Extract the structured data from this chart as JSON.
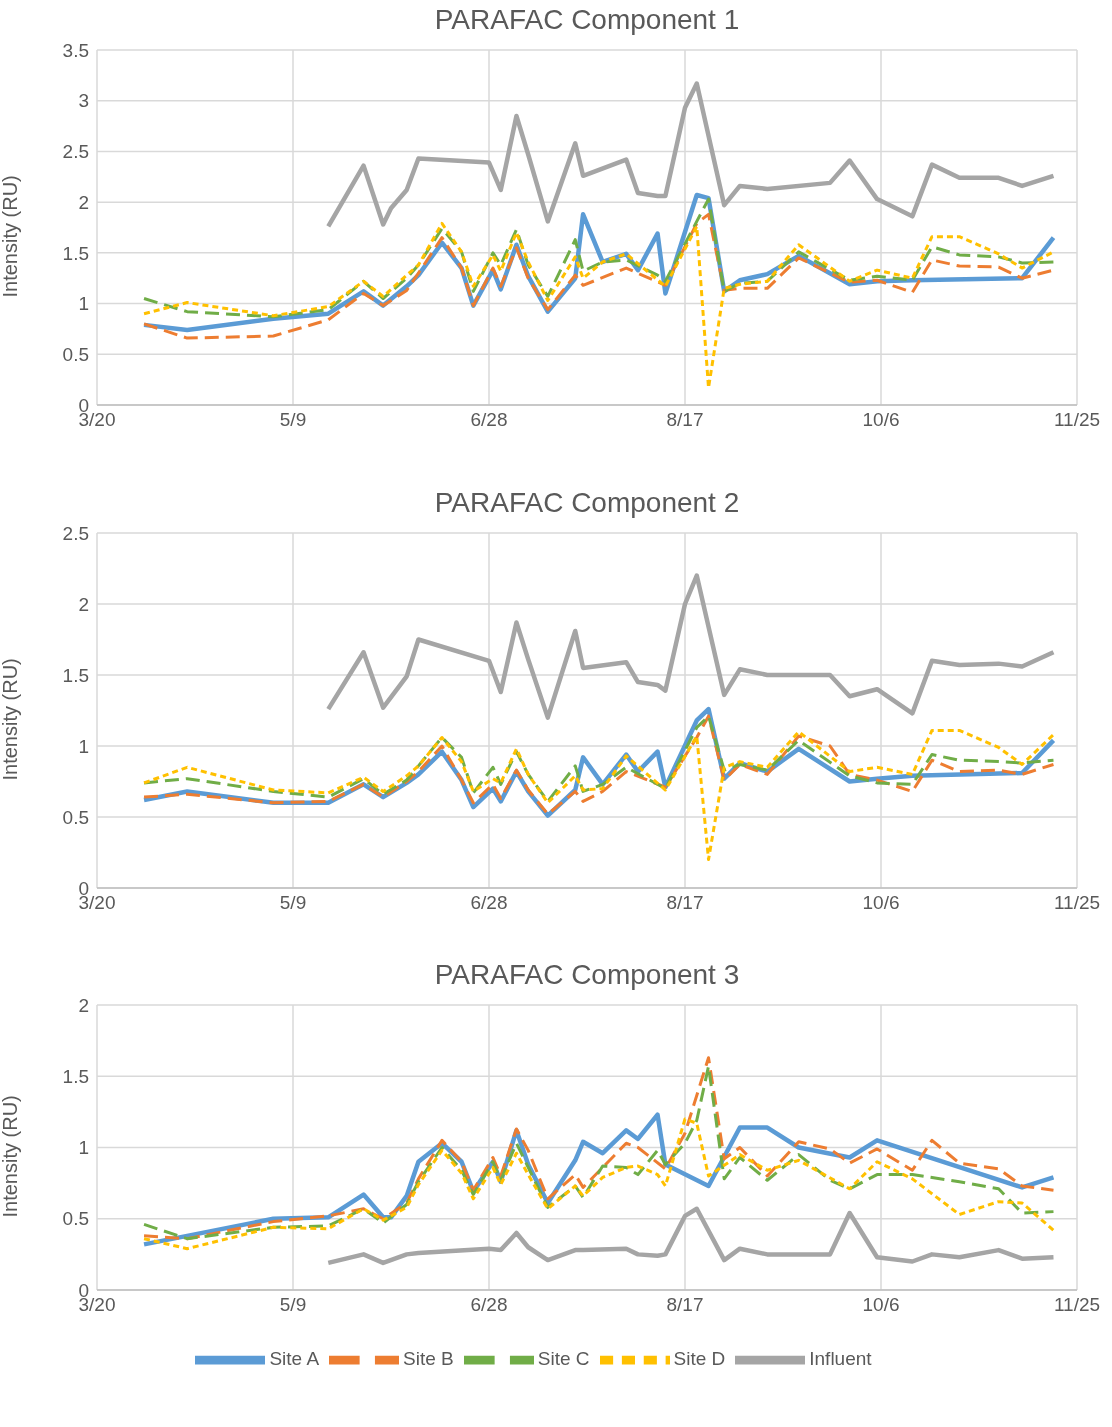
{
  "chart_data": [
    {
      "type": "line",
      "title": "PARAFAC Component 1",
      "ylabel": "Intensity (RU)",
      "xlim": [
        "--03-20",
        "--11-25"
      ],
      "xticks": [
        {
          "value": "--03-20",
          "label": "3/20"
        },
        {
          "value": "--05-09",
          "label": "5/9"
        },
        {
          "value": "--06-28",
          "label": "6/28"
        },
        {
          "value": "--08-17",
          "label": "8/17"
        },
        {
          "value": "--10-06",
          "label": "10/6"
        },
        {
          "value": "--11-25",
          "label": "11/25"
        }
      ],
      "ylim": [
        0,
        3.5
      ],
      "yticks": [
        0,
        0.5,
        1,
        1.5,
        2,
        2.5,
        3,
        3.5
      ],
      "grid": true,
      "legend": false,
      "marker": "none",
      "series": [
        {
          "color": "#5b9bd5",
          "line_style": "solid",
          "x": [
            "--04-01",
            "--04-12",
            "--05-04",
            "--05-18",
            "--05-27",
            "--06-01",
            "--06-07",
            "--06-10",
            "--06-16",
            "--06-21",
            "--06-24",
            "--06-29",
            "--07-01",
            "--07-05",
            "--07-08",
            "--07-13",
            "--07-20",
            "--07-22",
            "--07-27",
            "--08-02",
            "--08-05",
            "--08-10",
            "--08-12",
            "--08-20",
            "--08-23",
            "--08-27",
            "--08-31",
            "--09-07",
            "--09-15",
            "--09-28",
            "--10-05",
            "--10-14",
            "--11-11",
            "--11-19"
          ],
          "values": [
            0.79,
            0.74,
            0.85,
            0.9,
            1.12,
            0.98,
            1.17,
            1.28,
            1.6,
            1.35,
            0.98,
            1.33,
            1.14,
            1.58,
            1.27,
            0.92,
            1.25,
            1.88,
            1.41,
            1.49,
            1.33,
            1.69,
            1.1,
            2.07,
            2.04,
            1.12,
            1.23,
            1.29,
            1.47,
            1.19,
            1.22,
            1.23,
            1.25,
            1.65
          ]
        },
        {
          "color": "#ed7d31",
          "line_style": "dashed",
          "x": [
            "--04-01",
            "--04-12",
            "--05-04",
            "--05-18",
            "--05-27",
            "--06-01",
            "--06-07",
            "--06-10",
            "--06-16",
            "--06-21",
            "--06-24",
            "--06-29",
            "--07-01",
            "--07-05",
            "--07-08",
            "--07-13",
            "--07-20",
            "--07-22",
            "--08-02",
            "--08-12",
            "--08-20",
            "--08-23",
            "--08-27",
            "--08-31",
            "--09-07",
            "--09-15",
            "--09-28",
            "--10-05",
            "--10-14",
            "--10-19",
            "--10-26",
            "--11-05",
            "--11-11",
            "--11-19"
          ],
          "values": [
            0.8,
            0.66,
            0.68,
            0.84,
            1.1,
            0.98,
            1.13,
            1.3,
            1.65,
            1.35,
            0.98,
            1.35,
            1.17,
            1.55,
            1.25,
            0.94,
            1.28,
            1.18,
            1.35,
            1.18,
            1.79,
            1.88,
            1.13,
            1.15,
            1.15,
            1.45,
            1.21,
            1.23,
            1.11,
            1.43,
            1.37,
            1.36,
            1.25,
            1.33
          ]
        },
        {
          "color": "#70ad47",
          "line_style": "dashed",
          "x": [
            "--04-01",
            "--04-12",
            "--05-04",
            "--05-18",
            "--05-27",
            "--06-01",
            "--06-07",
            "--06-10",
            "--06-16",
            "--06-21",
            "--06-24",
            "--06-29",
            "--07-01",
            "--07-05",
            "--07-08",
            "--07-13",
            "--07-20",
            "--07-22",
            "--07-27",
            "--08-02",
            "--08-10",
            "--08-12",
            "--08-20",
            "--08-23",
            "--08-27",
            "--08-31",
            "--09-07",
            "--09-15",
            "--09-28",
            "--10-05",
            "--10-14",
            "--10-19",
            "--10-26",
            "--11-05",
            "--11-11",
            "--11-19"
          ],
          "values": [
            1.05,
            0.92,
            0.87,
            0.94,
            1.22,
            1.05,
            1.25,
            1.38,
            1.74,
            1.51,
            1.12,
            1.5,
            1.38,
            1.73,
            1.38,
            1.07,
            1.63,
            1.32,
            1.41,
            1.43,
            1.28,
            1.22,
            1.81,
            2.03,
            1.12,
            1.2,
            1.22,
            1.51,
            1.23,
            1.27,
            1.23,
            1.56,
            1.48,
            1.46,
            1.4,
            1.41
          ]
        },
        {
          "color": "#ffc000",
          "line_style": "dotted",
          "x": [
            "--04-01",
            "--04-12",
            "--05-04",
            "--05-18",
            "--05-27",
            "--06-01",
            "--06-07",
            "--06-10",
            "--06-16",
            "--06-21",
            "--06-24",
            "--06-29",
            "--07-01",
            "--07-05",
            "--07-08",
            "--07-13",
            "--07-20",
            "--07-22",
            "--07-27",
            "--08-02",
            "--08-12",
            "--08-20",
            "--08-23",
            "--08-27",
            "--08-31",
            "--09-07",
            "--09-15",
            "--09-28",
            "--10-05",
            "--10-14",
            "--10-19",
            "--10-26",
            "--11-05",
            "--11-11",
            "--11-19"
          ],
          "values": [
            0.9,
            1.01,
            0.88,
            0.97,
            1.22,
            1.07,
            1.28,
            1.38,
            1.79,
            1.51,
            1.17,
            1.48,
            1.32,
            1.7,
            1.41,
            1.03,
            1.46,
            1.25,
            1.41,
            1.49,
            1.17,
            1.76,
            0.17,
            1.15,
            1.19,
            1.22,
            1.58,
            1.22,
            1.33,
            1.25,
            1.66,
            1.66,
            1.49,
            1.35,
            1.51
          ]
        },
        {
          "color": "#a5a5a5",
          "line_style": "solid",
          "x": [
            "--05-18",
            "--05-27",
            "--06-01",
            "--06-03",
            "--06-07",
            "--06-10",
            "--06-28",
            "--07-01",
            "--07-05",
            "--07-08",
            "--07-13",
            "--07-20",
            "--07-22",
            "--08-02",
            "--08-05",
            "--08-10",
            "--08-12",
            "--08-17",
            "--08-20",
            "--08-27",
            "--08-31",
            "--09-07",
            "--09-23",
            "--09-28",
            "--10-05",
            "--10-14",
            "--10-19",
            "--10-26",
            "--11-05",
            "--11-11",
            "--11-19"
          ],
          "values": [
            1.76,
            2.36,
            1.78,
            1.94,
            2.12,
            2.43,
            2.39,
            2.12,
            2.85,
            2.47,
            1.81,
            2.58,
            2.26,
            2.42,
            2.09,
            2.06,
            2.06,
            2.93,
            3.17,
            1.97,
            2.16,
            2.13,
            2.19,
            2.41,
            2.03,
            1.86,
            2.37,
            2.24,
            2.24,
            2.16,
            2.26
          ]
        }
      ]
    },
    {
      "type": "line",
      "title": "PARAFAC Component 2",
      "ylabel": "Intensity (RU)",
      "xlim": [
        "--03-20",
        "--11-25"
      ],
      "xticks": [
        {
          "value": "--03-20",
          "label": "3/20"
        },
        {
          "value": "--05-09",
          "label": "5/9"
        },
        {
          "value": "--06-28",
          "label": "6/28"
        },
        {
          "value": "--08-17",
          "label": "8/17"
        },
        {
          "value": "--10-06",
          "label": "10/6"
        },
        {
          "value": "--11-25",
          "label": "11/25"
        }
      ],
      "ylim": [
        0,
        2.5
      ],
      "yticks": [
        0,
        0.5,
        1,
        1.5,
        2,
        2.5
      ],
      "grid": true,
      "legend": false,
      "marker": "none",
      "series": [
        {
          "color": "#5b9bd5",
          "line_style": "solid",
          "x": [
            "--04-01",
            "--04-12",
            "--05-04",
            "--05-18",
            "--05-27",
            "--06-01",
            "--06-07",
            "--06-10",
            "--06-16",
            "--06-21",
            "--06-24",
            "--06-29",
            "--07-01",
            "--07-05",
            "--07-08",
            "--07-13",
            "--07-20",
            "--07-22",
            "--07-27",
            "--08-02",
            "--08-05",
            "--08-10",
            "--08-12",
            "--08-20",
            "--08-23",
            "--08-27",
            "--08-31",
            "--09-07",
            "--09-15",
            "--09-28",
            "--10-05",
            "--10-14",
            "--11-11",
            "--11-19"
          ],
          "values": [
            0.62,
            0.68,
            0.6,
            0.6,
            0.73,
            0.64,
            0.74,
            0.8,
            0.96,
            0.76,
            0.57,
            0.7,
            0.61,
            0.82,
            0.68,
            0.51,
            0.69,
            0.92,
            0.73,
            0.94,
            0.82,
            0.96,
            0.71,
            1.18,
            1.26,
            0.77,
            0.88,
            0.82,
            0.98,
            0.75,
            0.77,
            0.79,
            0.81,
            1.04
          ]
        },
        {
          "color": "#ed7d31",
          "line_style": "dashed",
          "x": [
            "--04-01",
            "--04-12",
            "--05-04",
            "--05-18",
            "--05-27",
            "--06-01",
            "--06-07",
            "--06-10",
            "--06-16",
            "--06-21",
            "--06-24",
            "--06-29",
            "--07-01",
            "--07-05",
            "--07-08",
            "--07-13",
            "--07-20",
            "--07-22",
            "--07-27",
            "--08-02",
            "--08-12",
            "--08-20",
            "--08-23",
            "--08-27",
            "--08-31",
            "--09-07",
            "--09-15",
            "--09-23",
            "--09-28",
            "--10-05",
            "--10-14",
            "--10-19",
            "--10-26",
            "--11-05",
            "--11-11",
            "--11-19"
          ],
          "values": [
            0.64,
            0.66,
            0.6,
            0.61,
            0.73,
            0.64,
            0.75,
            0.82,
            1.0,
            0.76,
            0.6,
            0.73,
            0.63,
            0.83,
            0.69,
            0.52,
            0.68,
            0.61,
            0.68,
            0.82,
            0.71,
            1.06,
            1.21,
            0.76,
            0.87,
            0.8,
            1.07,
            1.0,
            0.8,
            0.76,
            0.68,
            0.9,
            0.82,
            0.83,
            0.8,
            0.87
          ]
        },
        {
          "color": "#70ad47",
          "line_style": "dashed",
          "x": [
            "--04-01",
            "--04-12",
            "--05-04",
            "--05-18",
            "--05-27",
            "--06-01",
            "--06-07",
            "--06-10",
            "--06-16",
            "--06-21",
            "--06-24",
            "--06-29",
            "--07-01",
            "--07-05",
            "--07-08",
            "--07-13",
            "--07-20",
            "--07-22",
            "--07-27",
            "--08-02",
            "--08-12",
            "--08-20",
            "--08-23",
            "--08-27",
            "--08-31",
            "--09-07",
            "--09-15",
            "--09-28",
            "--10-05",
            "--10-14",
            "--10-19",
            "--10-26",
            "--11-05",
            "--11-11",
            "--11-19"
          ],
          "values": [
            0.74,
            0.77,
            0.68,
            0.64,
            0.77,
            0.66,
            0.76,
            0.86,
            1.06,
            0.92,
            0.67,
            0.85,
            0.73,
            0.96,
            0.8,
            0.61,
            0.86,
            0.68,
            0.73,
            0.85,
            0.7,
            1.13,
            1.21,
            0.83,
            0.87,
            0.83,
            1.04,
            0.79,
            0.74,
            0.73,
            0.94,
            0.9,
            0.89,
            0.88,
            0.9
          ]
        },
        {
          "color": "#ffc000",
          "line_style": "dotted",
          "x": [
            "--04-01",
            "--04-12",
            "--05-04",
            "--05-18",
            "--05-27",
            "--06-01",
            "--06-07",
            "--06-10",
            "--06-16",
            "--06-21",
            "--06-24",
            "--06-29",
            "--07-01",
            "--07-05",
            "--07-08",
            "--07-13",
            "--07-20",
            "--07-22",
            "--07-27",
            "--08-02",
            "--08-12",
            "--08-20",
            "--08-23",
            "--08-27",
            "--08-31",
            "--09-07",
            "--09-15",
            "--09-28",
            "--10-05",
            "--10-14",
            "--10-19",
            "--10-26",
            "--11-05",
            "--11-11",
            "--11-19"
          ],
          "values": [
            0.74,
            0.85,
            0.69,
            0.67,
            0.78,
            0.68,
            0.79,
            0.86,
            1.06,
            0.89,
            0.68,
            0.77,
            0.74,
            0.98,
            0.8,
            0.6,
            0.79,
            0.69,
            0.7,
            0.93,
            0.69,
            1.07,
            0.2,
            0.85,
            0.89,
            0.85,
            1.1,
            0.82,
            0.85,
            0.8,
            1.11,
            1.11,
            0.99,
            0.87,
            1.08
          ]
        },
        {
          "color": "#a5a5a5",
          "line_style": "solid",
          "x": [
            "--05-18",
            "--05-27",
            "--06-01",
            "--06-07",
            "--06-10",
            "--06-28",
            "--07-01",
            "--07-05",
            "--07-08",
            "--07-13",
            "--07-20",
            "--07-22",
            "--08-02",
            "--08-05",
            "--08-10",
            "--08-12",
            "--08-17",
            "--08-20",
            "--08-27",
            "--08-31",
            "--09-07",
            "--09-23",
            "--09-28",
            "--10-05",
            "--10-14",
            "--10-19",
            "--10-26",
            "--11-05",
            "--11-11",
            "--11-19"
          ],
          "values": [
            1.26,
            1.66,
            1.27,
            1.49,
            1.75,
            1.6,
            1.38,
            1.87,
            1.61,
            1.2,
            1.81,
            1.55,
            1.59,
            1.45,
            1.43,
            1.39,
            2.0,
            2.2,
            1.36,
            1.54,
            1.5,
            1.5,
            1.35,
            1.4,
            1.23,
            1.6,
            1.57,
            1.58,
            1.56,
            1.66
          ]
        }
      ]
    },
    {
      "type": "line",
      "title": "PARAFAC Component 3",
      "ylabel": "Intensity (RU)",
      "xlim": [
        "--03-20",
        "--11-25"
      ],
      "xticks": [
        {
          "value": "--03-20",
          "label": "3/20"
        },
        {
          "value": "--05-09",
          "label": "5/9"
        },
        {
          "value": "--06-28",
          "label": "6/28"
        },
        {
          "value": "--08-17",
          "label": "8/17"
        },
        {
          "value": "--10-06",
          "label": "10/6"
        },
        {
          "value": "--11-25",
          "label": "11/25"
        }
      ],
      "ylim": [
        0,
        2
      ],
      "yticks": [
        0,
        0.5,
        1,
        1.5,
        2
      ],
      "grid": true,
      "legend": "bottom",
      "marker": "none",
      "series": [
        {
          "name": "Site A",
          "color": "#5b9bd5",
          "line_style": "solid",
          "x": [
            "--04-01",
            "--04-12",
            "--05-04",
            "--05-18",
            "--05-27",
            "--06-01",
            "--06-03",
            "--06-07",
            "--06-10",
            "--06-16",
            "--06-21",
            "--06-24",
            "--06-29",
            "--07-01",
            "--07-05",
            "--07-08",
            "--07-13",
            "--07-20",
            "--07-22",
            "--07-27",
            "--08-02",
            "--08-05",
            "--08-10",
            "--08-12",
            "--08-23",
            "--08-31",
            "--09-07",
            "--09-15",
            "--09-28",
            "--10-05",
            "--11-11",
            "--11-19"
          ],
          "values": [
            0.32,
            0.38,
            0.5,
            0.51,
            0.67,
            0.51,
            0.51,
            0.66,
            0.9,
            1.03,
            0.9,
            0.69,
            0.9,
            0.76,
            1.12,
            0.88,
            0.61,
            0.91,
            1.04,
            0.96,
            1.12,
            1.06,
            1.23,
            0.88,
            0.73,
            1.14,
            1.14,
            1.0,
            0.93,
            1.05,
            0.72,
            0.79
          ]
        },
        {
          "name": "Site B",
          "color": "#ed7d31",
          "line_style": "dashed",
          "x": [
            "--04-01",
            "--04-12",
            "--05-04",
            "--05-18",
            "--05-27",
            "--06-01",
            "--06-07",
            "--06-10",
            "--06-16",
            "--06-21",
            "--06-24",
            "--06-29",
            "--07-01",
            "--07-05",
            "--07-08",
            "--07-13",
            "--07-20",
            "--07-22",
            "--07-27",
            "--08-02",
            "--08-05",
            "--08-12",
            "--08-17",
            "--08-23",
            "--08-27",
            "--08-31",
            "--09-07",
            "--09-15",
            "--09-23",
            "--09-28",
            "--10-05",
            "--10-14",
            "--10-19",
            "--10-26",
            "--11-05",
            "--11-11",
            "--11-19"
          ],
          "values": [
            0.38,
            0.36,
            0.48,
            0.52,
            0.57,
            0.5,
            0.61,
            0.78,
            1.05,
            0.9,
            0.7,
            0.93,
            0.8,
            1.13,
            0.98,
            0.64,
            0.81,
            0.72,
            0.86,
            1.03,
            1.0,
            0.85,
            1.1,
            1.63,
            0.92,
            1.0,
            0.8,
            1.04,
            0.99,
            0.89,
            0.99,
            0.84,
            1.05,
            0.89,
            0.85,
            0.73,
            0.7
          ]
        },
        {
          "name": "Site C",
          "color": "#70ad47",
          "line_style": "dashed",
          "x": [
            "--04-01",
            "--04-12",
            "--05-04",
            "--05-18",
            "--05-27",
            "--06-01",
            "--06-07",
            "--06-10",
            "--06-16",
            "--06-21",
            "--06-24",
            "--06-29",
            "--07-01",
            "--07-05",
            "--07-08",
            "--07-13",
            "--07-20",
            "--07-22",
            "--07-27",
            "--08-02",
            "--08-05",
            "--08-10",
            "--08-12",
            "--08-17",
            "--08-20",
            "--08-23",
            "--08-27",
            "--08-31",
            "--09-07",
            "--09-15",
            "--09-23",
            "--09-28",
            "--10-05",
            "--10-14",
            "--10-26",
            "--11-05",
            "--11-11",
            "--11-19"
          ],
          "values": [
            0.46,
            0.36,
            0.44,
            0.45,
            0.57,
            0.47,
            0.6,
            0.76,
            1.0,
            0.84,
            0.67,
            0.9,
            0.77,
            1.03,
            0.86,
            0.58,
            0.73,
            0.65,
            0.87,
            0.86,
            0.81,
            0.98,
            0.88,
            1.03,
            1.19,
            1.57,
            0.78,
            0.93,
            0.77,
            0.95,
            0.77,
            0.71,
            0.81,
            0.81,
            0.76,
            0.71,
            0.54,
            0.55
          ]
        },
        {
          "name": "Site D",
          "color": "#ffc000",
          "line_style": "dotted",
          "x": [
            "--04-01",
            "--04-12",
            "--05-04",
            "--05-18",
            "--05-27",
            "--06-01",
            "--06-07",
            "--06-10",
            "--06-16",
            "--06-21",
            "--06-24",
            "--06-29",
            "--07-01",
            "--07-05",
            "--07-08",
            "--07-13",
            "--07-20",
            "--07-22",
            "--07-27",
            "--08-02",
            "--08-05",
            "--08-10",
            "--08-12",
            "--08-17",
            "--08-20",
            "--08-23",
            "--08-31",
            "--09-07",
            "--09-15",
            "--09-28",
            "--10-05",
            "--10-14",
            "--10-26",
            "--11-05",
            "--11-11",
            "--11-19"
          ],
          "values": [
            0.36,
            0.29,
            0.44,
            0.43,
            0.57,
            0.49,
            0.58,
            0.74,
            0.98,
            0.82,
            0.64,
            0.86,
            0.74,
            0.96,
            0.81,
            0.57,
            0.73,
            0.66,
            0.79,
            0.86,
            0.87,
            0.81,
            0.73,
            1.2,
            1.17,
            0.8,
            0.95,
            0.84,
            0.91,
            0.71,
            0.9,
            0.78,
            0.53,
            0.62,
            0.61,
            0.42
          ]
        },
        {
          "name": "Influent",
          "color": "#a5a5a5",
          "line_style": "solid",
          "x": [
            "--05-18",
            "--05-27",
            "--06-01",
            "--06-07",
            "--06-10",
            "--06-28",
            "--07-01",
            "--07-05",
            "--07-08",
            "--07-13",
            "--07-20",
            "--07-22",
            "--08-02",
            "--08-05",
            "--08-10",
            "--08-12",
            "--08-17",
            "--08-20",
            "--08-27",
            "--08-31",
            "--09-07",
            "--09-23",
            "--09-28",
            "--10-05",
            "--10-14",
            "--10-19",
            "--10-26",
            "--11-05",
            "--11-11",
            "--11-19"
          ],
          "values": [
            0.19,
            0.25,
            0.19,
            0.25,
            0.26,
            0.29,
            0.28,
            0.4,
            0.3,
            0.21,
            0.28,
            0.28,
            0.29,
            0.25,
            0.24,
            0.25,
            0.52,
            0.57,
            0.21,
            0.29,
            0.25,
            0.25,
            0.54,
            0.23,
            0.2,
            0.25,
            0.23,
            0.28,
            0.22,
            0.23
          ]
        }
      ]
    }
  ]
}
